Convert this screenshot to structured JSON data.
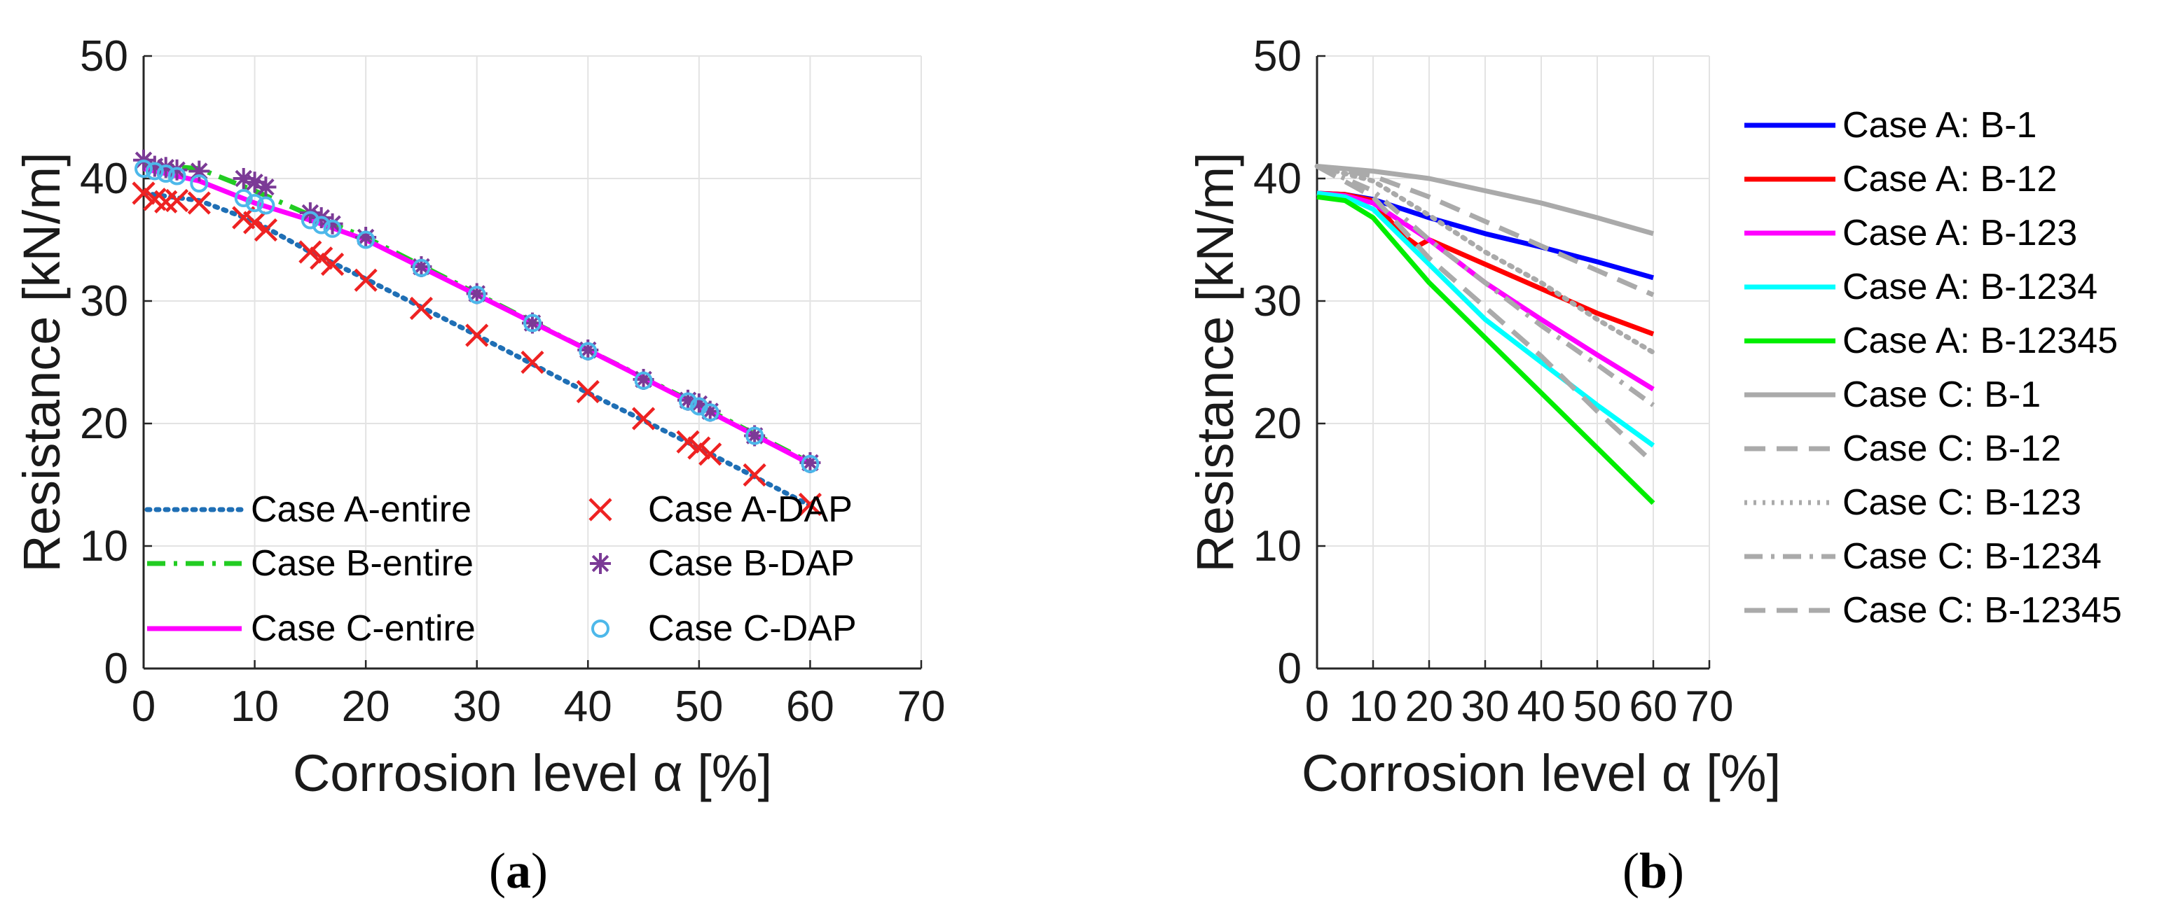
{
  "chart_data": [
    {
      "panel": "a",
      "panel_label": "a",
      "type": "line",
      "xlabel": "Corrosion level α [%]",
      "ylabel": "Resistance [kN/m]",
      "xlim": [
        0,
        70
      ],
      "ylim": [
        0,
        50
      ],
      "xticks": [
        "0",
        "10",
        "20",
        "30",
        "40",
        "50",
        "60",
        "70"
      ],
      "yticks": [
        "0",
        "10",
        "20",
        "30",
        "40",
        "50"
      ],
      "grid": true,
      "legend_position": "bottom",
      "series": [
        {
          "name": "Case A-entire",
          "kind": "line",
          "style": "dotted",
          "color": "#1f6fb5",
          "x": [
            0,
            5,
            10,
            15,
            20,
            30,
            40,
            50,
            60
          ],
          "y": [
            38.8,
            38.2,
            36.5,
            34.0,
            31.8,
            27.2,
            22.5,
            18.0,
            13.3
          ]
        },
        {
          "name": "Case B-entire",
          "kind": "line",
          "style": "dashdot",
          "color": "#22cc22",
          "x": [
            0,
            5,
            10,
            15,
            20,
            30,
            40,
            50,
            60
          ],
          "y": [
            41.2,
            40.8,
            39.0,
            37.0,
            35.2,
            30.6,
            26.0,
            21.5,
            16.8
          ]
        },
        {
          "name": "Case C-entire",
          "kind": "line",
          "style": "solid",
          "color": "#ff00ff",
          "x": [
            0,
            5,
            10,
            15,
            20,
            30,
            40,
            50,
            60
          ],
          "y": [
            40.8,
            39.8,
            38.0,
            36.6,
            35.0,
            30.5,
            26.0,
            21.4,
            16.7
          ]
        },
        {
          "name": "Case A-DAP",
          "kind": "marker",
          "marker": "x",
          "color": "#ee2222",
          "x": [
            0,
            1,
            2,
            3,
            5,
            9,
            10,
            11,
            15,
            16,
            17,
            20,
            25,
            30,
            35,
            40,
            45,
            49,
            50,
            51,
            55,
            60
          ],
          "y": [
            38.8,
            38.3,
            38.1,
            38.2,
            38.0,
            36.8,
            36.4,
            35.8,
            34.0,
            33.5,
            33.0,
            31.7,
            29.4,
            27.2,
            25.0,
            22.6,
            20.4,
            18.5,
            18.0,
            17.5,
            15.8,
            13.4
          ]
        },
        {
          "name": "Case B-DAP",
          "kind": "marker",
          "marker": "asterisk",
          "color": "#7b3a96",
          "x": [
            0,
            1,
            2,
            3,
            5,
            9,
            10,
            11,
            15,
            16,
            17,
            20,
            25,
            30,
            35,
            40,
            45,
            49,
            50,
            51,
            55,
            60
          ],
          "y": [
            41.5,
            41.0,
            40.9,
            40.7,
            40.6,
            40.0,
            39.7,
            39.3,
            37.2,
            36.8,
            36.3,
            35.2,
            32.8,
            30.6,
            28.2,
            26.0,
            23.6,
            21.9,
            21.6,
            21.0,
            19.0,
            16.8
          ]
        },
        {
          "name": "Case C-DAP",
          "kind": "marker",
          "marker": "circle",
          "color": "#4db8ea",
          "x": [
            0,
            1,
            2,
            3,
            5,
            9,
            10,
            11,
            15,
            16,
            17,
            20,
            25,
            30,
            35,
            40,
            45,
            49,
            50,
            51,
            55,
            60
          ],
          "y": [
            40.8,
            40.6,
            40.4,
            40.2,
            39.6,
            38.4,
            38.0,
            37.8,
            36.6,
            36.2,
            35.9,
            35.0,
            32.7,
            30.5,
            28.2,
            25.9,
            23.5,
            21.8,
            21.4,
            20.9,
            19.0,
            16.7
          ]
        }
      ]
    },
    {
      "panel": "b",
      "panel_label": "b",
      "type": "line",
      "xlabel": "Corrosion level α [%]",
      "ylabel": "Resistance [kN/m]",
      "xlim": [
        0,
        70
      ],
      "ylim": [
        0,
        50
      ],
      "xticks": [
        "0",
        "10",
        "20",
        "30",
        "40",
        "50",
        "60",
        "70"
      ],
      "yticks": [
        "0",
        "10",
        "20",
        "30",
        "40",
        "50"
      ],
      "grid": true,
      "legend_position": "outside-right",
      "series": [
        {
          "name": "Case A: B-1",
          "style": "solid",
          "color": "#0000ff",
          "x": [
            0,
            5,
            10,
            20,
            30,
            40,
            50,
            60
          ],
          "y": [
            38.8,
            38.7,
            38.3,
            36.8,
            35.5,
            34.4,
            33.2,
            31.9
          ]
        },
        {
          "name": "Case A: B-12",
          "style": "solid",
          "color": "#ff0000",
          "x": [
            0,
            5,
            10,
            15,
            18,
            20,
            30,
            40,
            50,
            60
          ],
          "y": [
            38.8,
            38.7,
            38.2,
            35.5,
            34.5,
            35.0,
            33.0,
            31.0,
            29.0,
            27.3
          ]
        },
        {
          "name": "Case A: B-123",
          "style": "solid",
          "color": "#ff00ff",
          "x": [
            0,
            5,
            10,
            20,
            30,
            40,
            50,
            60
          ],
          "y": [
            38.8,
            38.6,
            38.0,
            35.0,
            31.5,
            28.5,
            25.6,
            22.8
          ]
        },
        {
          "name": "Case A: B-1234",
          "style": "solid",
          "color": "#00ffff",
          "x": [
            0,
            5,
            10,
            20,
            30,
            40,
            50,
            60
          ],
          "y": [
            38.8,
            38.5,
            37.5,
            33.0,
            28.5,
            25.0,
            21.5,
            18.2
          ]
        },
        {
          "name": "Case A: B-12345",
          "style": "solid",
          "color": "#00ee00",
          "x": [
            0,
            5,
            10,
            20,
            30,
            40,
            50,
            60
          ],
          "y": [
            38.5,
            38.2,
            36.8,
            31.5,
            27.0,
            22.5,
            18.0,
            13.5
          ]
        },
        {
          "name": "Case C: B-1",
          "style": "solid",
          "color": "#aaaaaa",
          "x": [
            0,
            10,
            20,
            30,
            40,
            50,
            60
          ],
          "y": [
            41.0,
            40.6,
            40.0,
            39.0,
            38.0,
            36.8,
            35.5
          ]
        },
        {
          "name": "Case C: B-12",
          "style": "dashed",
          "color": "#aaaaaa",
          "x": [
            0,
            10,
            20,
            30,
            40,
            50,
            60
          ],
          "y": [
            41.0,
            40.2,
            38.5,
            36.5,
            34.5,
            32.5,
            30.5
          ]
        },
        {
          "name": "Case C: B-123",
          "style": "dotted",
          "color": "#aaaaaa",
          "x": [
            0,
            10,
            20,
            30,
            40,
            50,
            60
          ],
          "y": [
            41.0,
            39.8,
            37.0,
            34.0,
            31.5,
            28.5,
            25.8
          ]
        },
        {
          "name": "Case C: B-1234",
          "style": "dashdot",
          "color": "#aaaaaa",
          "x": [
            0,
            10,
            20,
            30,
            40,
            50,
            60
          ],
          "y": [
            41.0,
            39.0,
            35.0,
            31.5,
            28.0,
            24.8,
            21.5
          ]
        },
        {
          "name": "Case C: B-12345",
          "style": "dashed",
          "color": "#aaaaaa",
          "x": [
            0,
            10,
            20,
            30,
            40,
            50,
            60
          ],
          "y": [
            41.0,
            38.5,
            33.5,
            29.5,
            25.5,
            21.0,
            16.8
          ]
        }
      ]
    }
  ]
}
